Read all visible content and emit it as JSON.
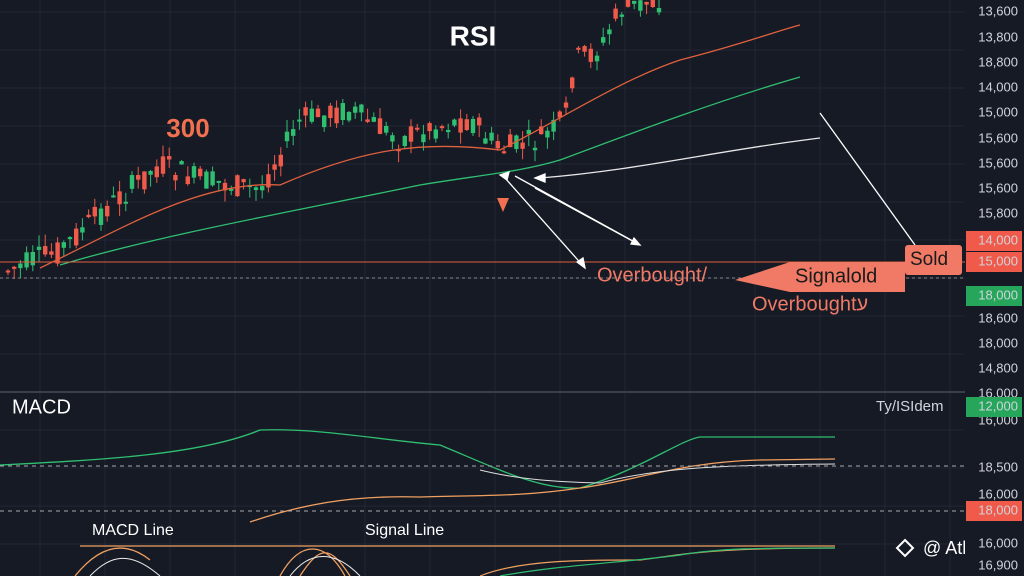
{
  "title": "RSI",
  "level": "300",
  "pane_label": "MACD",
  "annotations": {
    "overbought_1": "Overbought/",
    "signal": "Signalold",
    "sold": "Sold",
    "overbought_2": "Overboughtע"
  },
  "price_axis": [
    "13,600",
    "13,800",
    "18,800",
    "14,000",
    "15,000",
    "15,600",
    "15,600",
    "15,600",
    "15,800",
    "18,600",
    "18,000",
    "14,800",
    "16,000"
  ],
  "price_badges": [
    {
      "label": "14,000",
      "color": "#f05a4a"
    },
    {
      "label": "15,000",
      "color": "#f05a4a"
    },
    {
      "label": "18,000",
      "color": "#26a65b"
    }
  ],
  "indicator_label": "Ty/ISIdem",
  "macd_axis": [
    "16,000",
    "18,500",
    "16,000",
    "16,000",
    "16,900"
  ],
  "macd_badges": [
    {
      "label": "12,000",
      "color": "#26a65b"
    },
    {
      "label": "18,000",
      "color": "#f05a4a"
    }
  ],
  "legend": [
    "MACD Line",
    "Signal Line"
  ],
  "watermark": "@ Athulb"
}
